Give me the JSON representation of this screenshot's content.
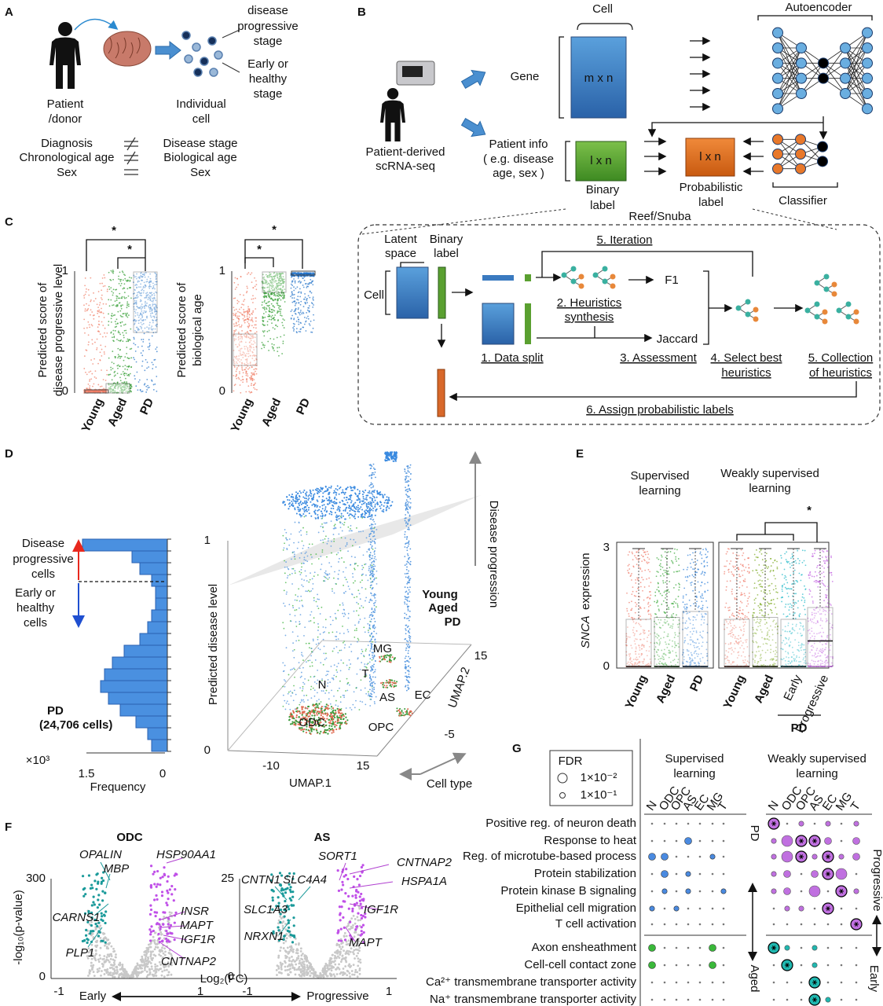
{
  "panel_a": {
    "letter": "A",
    "progressive_stage": [
      "disease",
      "progressive",
      "stage"
    ],
    "early_stage": [
      "Early or",
      "healthy",
      "stage"
    ],
    "patient": [
      "Patient",
      "/donor"
    ],
    "cell": [
      "Individual",
      "cell"
    ],
    "patient_attributes": [
      "Diagnosis",
      "Chronological age",
      "Sex"
    ],
    "cell_attributes": [
      "Disease stage",
      "Biological age",
      "Sex"
    ]
  },
  "panel_b": {
    "letter": "B",
    "cell": "Cell",
    "autoencoder": "Autoencoder",
    "gene": "Gene",
    "matrix": "m x n",
    "patient_info": [
      "Patient info",
      "( e.g. disease",
      "age, sex )"
    ],
    "binary_matrix": "l x n",
    "binary_label": [
      "Binary",
      "label"
    ],
    "probabilistic_matrix": "l x n",
    "probabilistic_label": [
      "Probabilistic",
      "label"
    ],
    "classifier": "Classifier",
    "source": [
      "Patient-derived",
      "scRNA-seq"
    ],
    "reef_title": "Reef/Snuba",
    "latent_space": [
      "Latent",
      "space"
    ],
    "binary_label_small": [
      "Binary",
      "label"
    ],
    "cell_axis": "Cell",
    "iteration": "5. Iteration",
    "f1": "F1",
    "heuristics_synthesis": [
      "2. Heuristics",
      "synthesis"
    ],
    "jaccard": "Jaccard",
    "data_split": "1. Data split",
    "assessment": "3. Assessment",
    "select_best": [
      "4. Select best",
      "heuristics"
    ],
    "collection": [
      "5. Collection",
      "of heuristics"
    ],
    "assign": "6. Assign probabilistic labels"
  },
  "panel_c": {
    "letter": "C",
    "significance": "*",
    "categories": [
      "Young",
      "Aged",
      "PD"
    ],
    "plots": [
      {
        "y_label": [
          "Predicted score of",
          "disease progressive level"
        ],
        "yticks": [
          1,
          0
        ]
      },
      {
        "y_label": [
          "Predicted score of",
          "biological age"
        ],
        "yticks": [
          1,
          0
        ]
      }
    ]
  },
  "panel_d": {
    "letter": "D",
    "progressive_cells": [
      "Disease",
      "progressive",
      "cells"
    ],
    "early_cells": [
      "Early or",
      "healthy",
      "cells"
    ],
    "population": [
      "PD",
      "(24,706 cells)"
    ],
    "x_multiplier": "×10³",
    "xticks": [
      1.5,
      0
    ],
    "x_label": "Frequency",
    "yticks": [
      1,
      0
    ],
    "y_label": "Predicted disease level",
    "z_label": "Disease progression",
    "legend": [
      "Young",
      "Aged",
      "PD"
    ],
    "cell_types": [
      "MG",
      "T",
      "N",
      "AS",
      "EC",
      "ODC",
      "OPC"
    ],
    "umap1_ticks": [
      -10,
      15
    ],
    "umap1_label": "UMAP.1",
    "umap2_ticks": [
      15,
      -5
    ],
    "umap2_label": "UMAP.2",
    "cell_type_label": "Cell type"
  },
  "panel_e": {
    "letter": "E",
    "supervised": [
      "Supervised",
      "learning"
    ],
    "weakly": [
      "Weakly supervised",
      "learning"
    ],
    "significance": "*",
    "yticks": [
      3,
      0
    ],
    "y_label_gene": "SNCA",
    "y_label": "expression",
    "supervised_categories": [
      "Young",
      "Aged",
      "PD"
    ],
    "weakly_categories": [
      "Young",
      "Aged",
      "Early",
      "Progressive"
    ],
    "group_label": "PD"
  },
  "panel_f": {
    "letter": "F",
    "plots": [
      {
        "title": "ODC",
        "yticks": [
          300,
          0
        ],
        "xticks": [
          -1,
          1
        ],
        "early_genes": [
          "OPALIN",
          "MBP",
          "CARNS1",
          "PLP1"
        ],
        "progressive_genes": [
          "HSP90AA1",
          "INSR",
          "MAPT",
          "IGF1R",
          "CNTNAP2"
        ]
      },
      {
        "title": "AS",
        "yticks": [
          25,
          0
        ],
        "xticks": [
          -1,
          1
        ],
        "early_genes": [
          "CNTN1",
          "SLC4A4",
          "SLC1A3",
          "NRXN1"
        ],
        "progressive_genes": [
          "SORT1",
          "CNTNAP2",
          "HSPA1A",
          "IGF1R",
          "MAPT"
        ]
      }
    ],
    "y_label": "-log₁₀(p-value)",
    "x_label": "Log₂(FC)",
    "early": "Early",
    "progressive": "Progressive"
  },
  "panel_g": {
    "letter": "G",
    "legend_title": "FDR",
    "legend": [
      "1×10⁻²",
      "1×10⁻¹"
    ],
    "supervised": [
      "Supervised",
      "learning"
    ],
    "weakly": [
      "Weakly supervised",
      "learning"
    ],
    "cell_types": [
      "N",
      "ODC",
      "OPC",
      "AS",
      "EC",
      "MG",
      "T"
    ],
    "pd_terms": [
      "Positive reg. of neuron death",
      "Response to heat",
      "Reg. of microtube-based process",
      "Protein stabilization",
      "Protein kinase B signaling",
      "Epithelial cell migration",
      "T cell activation"
    ],
    "aged_terms": [
      "Axon ensheathment",
      "Cell-cell contact zone",
      "Ca²⁺ transmembrane transporter activity",
      "Na⁺ transmembrane transporter activity"
    ],
    "pd": "PD",
    "aged": "Aged",
    "progressive": "Progressive",
    "early": "Early"
  }
}
